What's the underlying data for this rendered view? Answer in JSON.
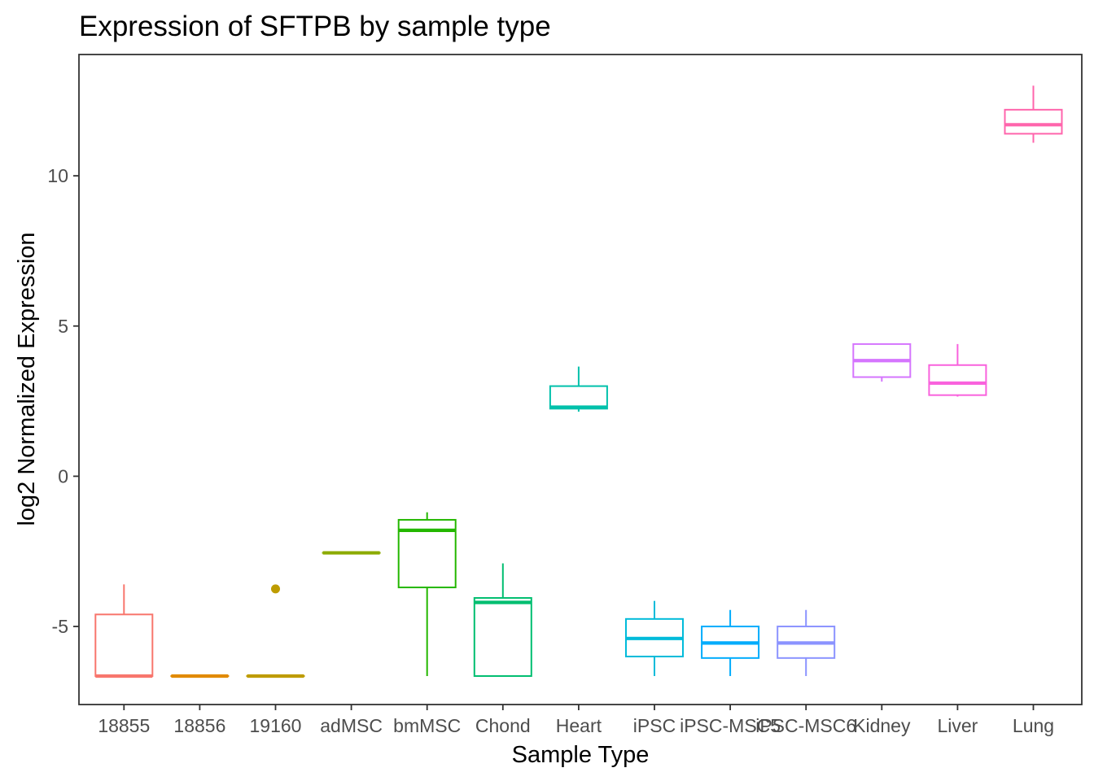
{
  "chart_data": {
    "type": "boxplot",
    "title": "Expression of SFTPB by sample type",
    "xlabel": "Sample Type",
    "ylabel": "log2 Normalized Expression",
    "ylim": [
      -7.6,
      14.0
    ],
    "yticks": [
      -5,
      0,
      5,
      10
    ],
    "ytick_labels": [
      "-5",
      "0",
      "5",
      "10"
    ],
    "grid": false,
    "legend": "none",
    "categories": [
      "18855",
      "18856",
      "19160",
      "adMSC",
      "bmMSC",
      "Chond",
      "Heart",
      "iPSC",
      "iPSC-MSC5",
      "iPSC-MSC6",
      "Kidney",
      "Liver",
      "Lung"
    ],
    "colors": [
      "#F8766D",
      "#E18A00",
      "#BE9C00",
      "#8CAB00",
      "#24B700",
      "#00BE70",
      "#00C1AB",
      "#00BBDA",
      "#00ACFC",
      "#8B93FF",
      "#D575FE",
      "#F962DD",
      "#FF65AC"
    ],
    "boxes": [
      {
        "category": "18855",
        "min": -6.65,
        "q1": -6.65,
        "median": -6.65,
        "q3": -4.6,
        "max": -3.6,
        "outliers": []
      },
      {
        "category": "18856",
        "min": -6.65,
        "q1": -6.65,
        "median": -6.65,
        "q3": -6.65,
        "max": -6.65,
        "outliers": []
      },
      {
        "category": "19160",
        "min": -6.65,
        "q1": -6.65,
        "median": -6.65,
        "q3": -6.65,
        "max": -6.65,
        "outliers": [
          -3.75
        ]
      },
      {
        "category": "adMSC",
        "min": -2.55,
        "q1": -2.55,
        "median": -2.55,
        "q3": -2.55,
        "max": -2.55,
        "outliers": []
      },
      {
        "category": "bmMSC",
        "min": -6.65,
        "q1": -3.7,
        "median": -1.8,
        "q3": -1.45,
        "max": -1.2,
        "outliers": []
      },
      {
        "category": "Chond",
        "min": -6.65,
        "q1": -6.65,
        "median": -4.2,
        "q3": -4.05,
        "max": -2.9,
        "outliers": []
      },
      {
        "category": "Heart",
        "min": 2.15,
        "q1": 2.25,
        "median": 2.3,
        "q3": 3.0,
        "max": 3.65,
        "outliers": []
      },
      {
        "category": "iPSC",
        "min": -6.65,
        "q1": -6.0,
        "median": -5.4,
        "q3": -4.75,
        "max": -4.15,
        "outliers": []
      },
      {
        "category": "iPSC-MSC5",
        "min": -6.65,
        "q1": -6.05,
        "median": -5.55,
        "q3": -5.0,
        "max": -4.45,
        "outliers": []
      },
      {
        "category": "iPSC-MSC6",
        "min": -6.65,
        "q1": -6.05,
        "median": -5.55,
        "q3": -5.0,
        "max": -4.45,
        "outliers": []
      },
      {
        "category": "Kidney",
        "min": 3.15,
        "q1": 3.3,
        "median": 3.85,
        "q3": 4.4,
        "max": 4.4,
        "outliers": []
      },
      {
        "category": "Liver",
        "min": 2.65,
        "q1": 2.7,
        "median": 3.1,
        "q3": 3.7,
        "max": 4.4,
        "outliers": []
      },
      {
        "category": "Lung",
        "min": 11.1,
        "q1": 11.4,
        "median": 11.7,
        "q3": 12.2,
        "max": 13.0,
        "outliers": []
      }
    ]
  }
}
